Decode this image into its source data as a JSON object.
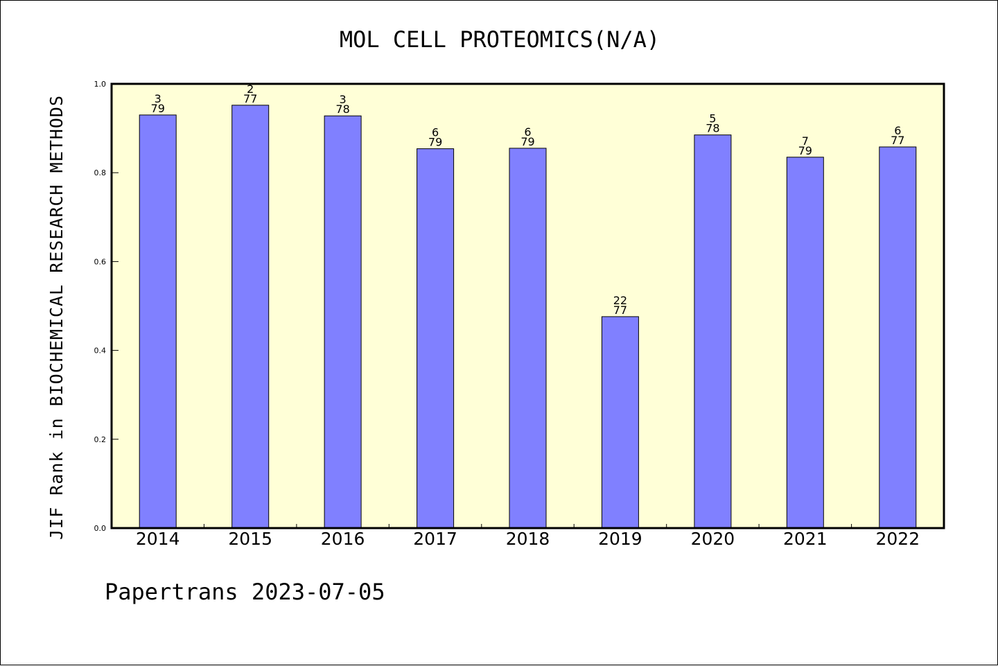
{
  "chart_data": {
    "type": "bar",
    "title": "MOL CELL PROTEOMICS(N/A)",
    "xlabel": "",
    "ylabel": "JIF Rank in BIOCHEMICAL RESEARCH METHODS",
    "ylim": [
      0,
      1.0
    ],
    "yticks": [
      "0.0",
      "0.2",
      "0.4",
      "0.6",
      "0.8",
      "1.0"
    ],
    "categories": [
      "2014",
      "2015",
      "2016",
      "2017",
      "2018",
      "2019",
      "2020",
      "2021",
      "2022"
    ],
    "values": [
      0.93,
      0.952,
      0.928,
      0.854,
      0.855,
      0.476,
      0.885,
      0.835,
      0.858
    ],
    "rank": [
      "3",
      "2",
      "3",
      "6",
      "6",
      "22",
      "5",
      "7",
      "6"
    ],
    "total": [
      "79",
      "77",
      "78",
      "79",
      "79",
      "77",
      "78",
      "79",
      "77"
    ],
    "grid": false,
    "legend": "none",
    "colors": {
      "plot_background": "#ffffd7",
      "bar_fill": "#8080ff",
      "bar_stroke": "#000000"
    }
  },
  "footer": "Papertrans 2023-07-05"
}
